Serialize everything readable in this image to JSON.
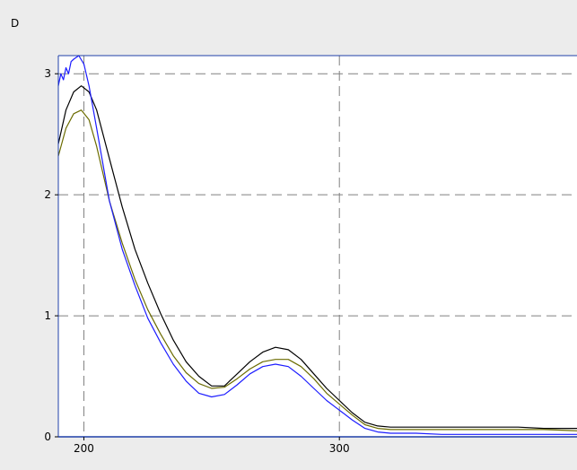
{
  "chart_data": {
    "type": "line",
    "title": "",
    "ylabel": "D",
    "xlabel": "",
    "xlim": [
      190,
      393
    ],
    "ylim": [
      0,
      3.15
    ],
    "x_ticks": [
      200,
      300
    ],
    "y_ticks": [
      0,
      1,
      2,
      3
    ],
    "grid": true,
    "series": [
      {
        "color": "#000000",
        "points": [
          [
            190,
            2.42
          ],
          [
            193,
            2.7
          ],
          [
            196,
            2.85
          ],
          [
            199,
            2.9
          ],
          [
            202,
            2.85
          ],
          [
            205,
            2.7
          ],
          [
            210,
            2.3
          ],
          [
            215,
            1.9
          ],
          [
            220,
            1.55
          ],
          [
            225,
            1.27
          ],
          [
            230,
            1.02
          ],
          [
            235,
            0.8
          ],
          [
            240,
            0.62
          ],
          [
            245,
            0.5
          ],
          [
            250,
            0.42
          ],
          [
            255,
            0.42
          ],
          [
            260,
            0.52
          ],
          [
            265,
            0.62
          ],
          [
            270,
            0.7
          ],
          [
            275,
            0.74
          ],
          [
            280,
            0.72
          ],
          [
            285,
            0.64
          ],
          [
            290,
            0.52
          ],
          [
            295,
            0.4
          ],
          [
            300,
            0.3
          ],
          [
            305,
            0.2
          ],
          [
            310,
            0.12
          ],
          [
            315,
            0.09
          ],
          [
            320,
            0.08
          ],
          [
            330,
            0.08
          ],
          [
            340,
            0.08
          ],
          [
            350,
            0.08
          ],
          [
            360,
            0.08
          ],
          [
            370,
            0.08
          ],
          [
            380,
            0.07
          ],
          [
            393,
            0.07
          ]
        ]
      },
      {
        "color": "#6b6b00",
        "points": [
          [
            190,
            2.32
          ],
          [
            193,
            2.55
          ],
          [
            196,
            2.67
          ],
          [
            199,
            2.7
          ],
          [
            202,
            2.62
          ],
          [
            205,
            2.4
          ],
          [
            210,
            1.95
          ],
          [
            215,
            1.6
          ],
          [
            220,
            1.3
          ],
          [
            225,
            1.05
          ],
          [
            230,
            0.85
          ],
          [
            235,
            0.67
          ],
          [
            240,
            0.53
          ],
          [
            245,
            0.44
          ],
          [
            250,
            0.4
          ],
          [
            255,
            0.41
          ],
          [
            260,
            0.48
          ],
          [
            265,
            0.56
          ],
          [
            270,
            0.62
          ],
          [
            275,
            0.64
          ],
          [
            280,
            0.64
          ],
          [
            285,
            0.58
          ],
          [
            290,
            0.48
          ],
          [
            295,
            0.36
          ],
          [
            300,
            0.27
          ],
          [
            305,
            0.18
          ],
          [
            310,
            0.1
          ],
          [
            315,
            0.07
          ],
          [
            320,
            0.06
          ],
          [
            330,
            0.06
          ],
          [
            340,
            0.06
          ],
          [
            350,
            0.06
          ],
          [
            360,
            0.06
          ],
          [
            370,
            0.06
          ],
          [
            380,
            0.06
          ],
          [
            393,
            0.05
          ]
        ]
      },
      {
        "color": "#1c1cff",
        "points": [
          [
            190,
            2.9
          ],
          [
            191,
            3.0
          ],
          [
            192,
            2.95
          ],
          [
            193,
            3.05
          ],
          [
            194,
            3.0
          ],
          [
            195,
            3.1
          ],
          [
            196,
            3.12
          ],
          [
            198,
            3.15
          ],
          [
            200,
            3.08
          ],
          [
            202,
            2.9
          ],
          [
            205,
            2.55
          ],
          [
            210,
            1.95
          ],
          [
            215,
            1.55
          ],
          [
            220,
            1.25
          ],
          [
            225,
            0.98
          ],
          [
            230,
            0.78
          ],
          [
            235,
            0.6
          ],
          [
            240,
            0.46
          ],
          [
            245,
            0.36
          ],
          [
            250,
            0.33
          ],
          [
            255,
            0.35
          ],
          [
            260,
            0.43
          ],
          [
            265,
            0.52
          ],
          [
            270,
            0.58
          ],
          [
            275,
            0.6
          ],
          [
            280,
            0.58
          ],
          [
            285,
            0.5
          ],
          [
            290,
            0.4
          ],
          [
            295,
            0.3
          ],
          [
            300,
            0.22
          ],
          [
            305,
            0.14
          ],
          [
            310,
            0.07
          ],
          [
            315,
            0.04
          ],
          [
            320,
            0.03
          ],
          [
            330,
            0.03
          ],
          [
            340,
            0.02
          ],
          [
            360,
            0.02
          ],
          [
            380,
            0.02
          ],
          [
            393,
            0.02
          ]
        ]
      }
    ]
  }
}
